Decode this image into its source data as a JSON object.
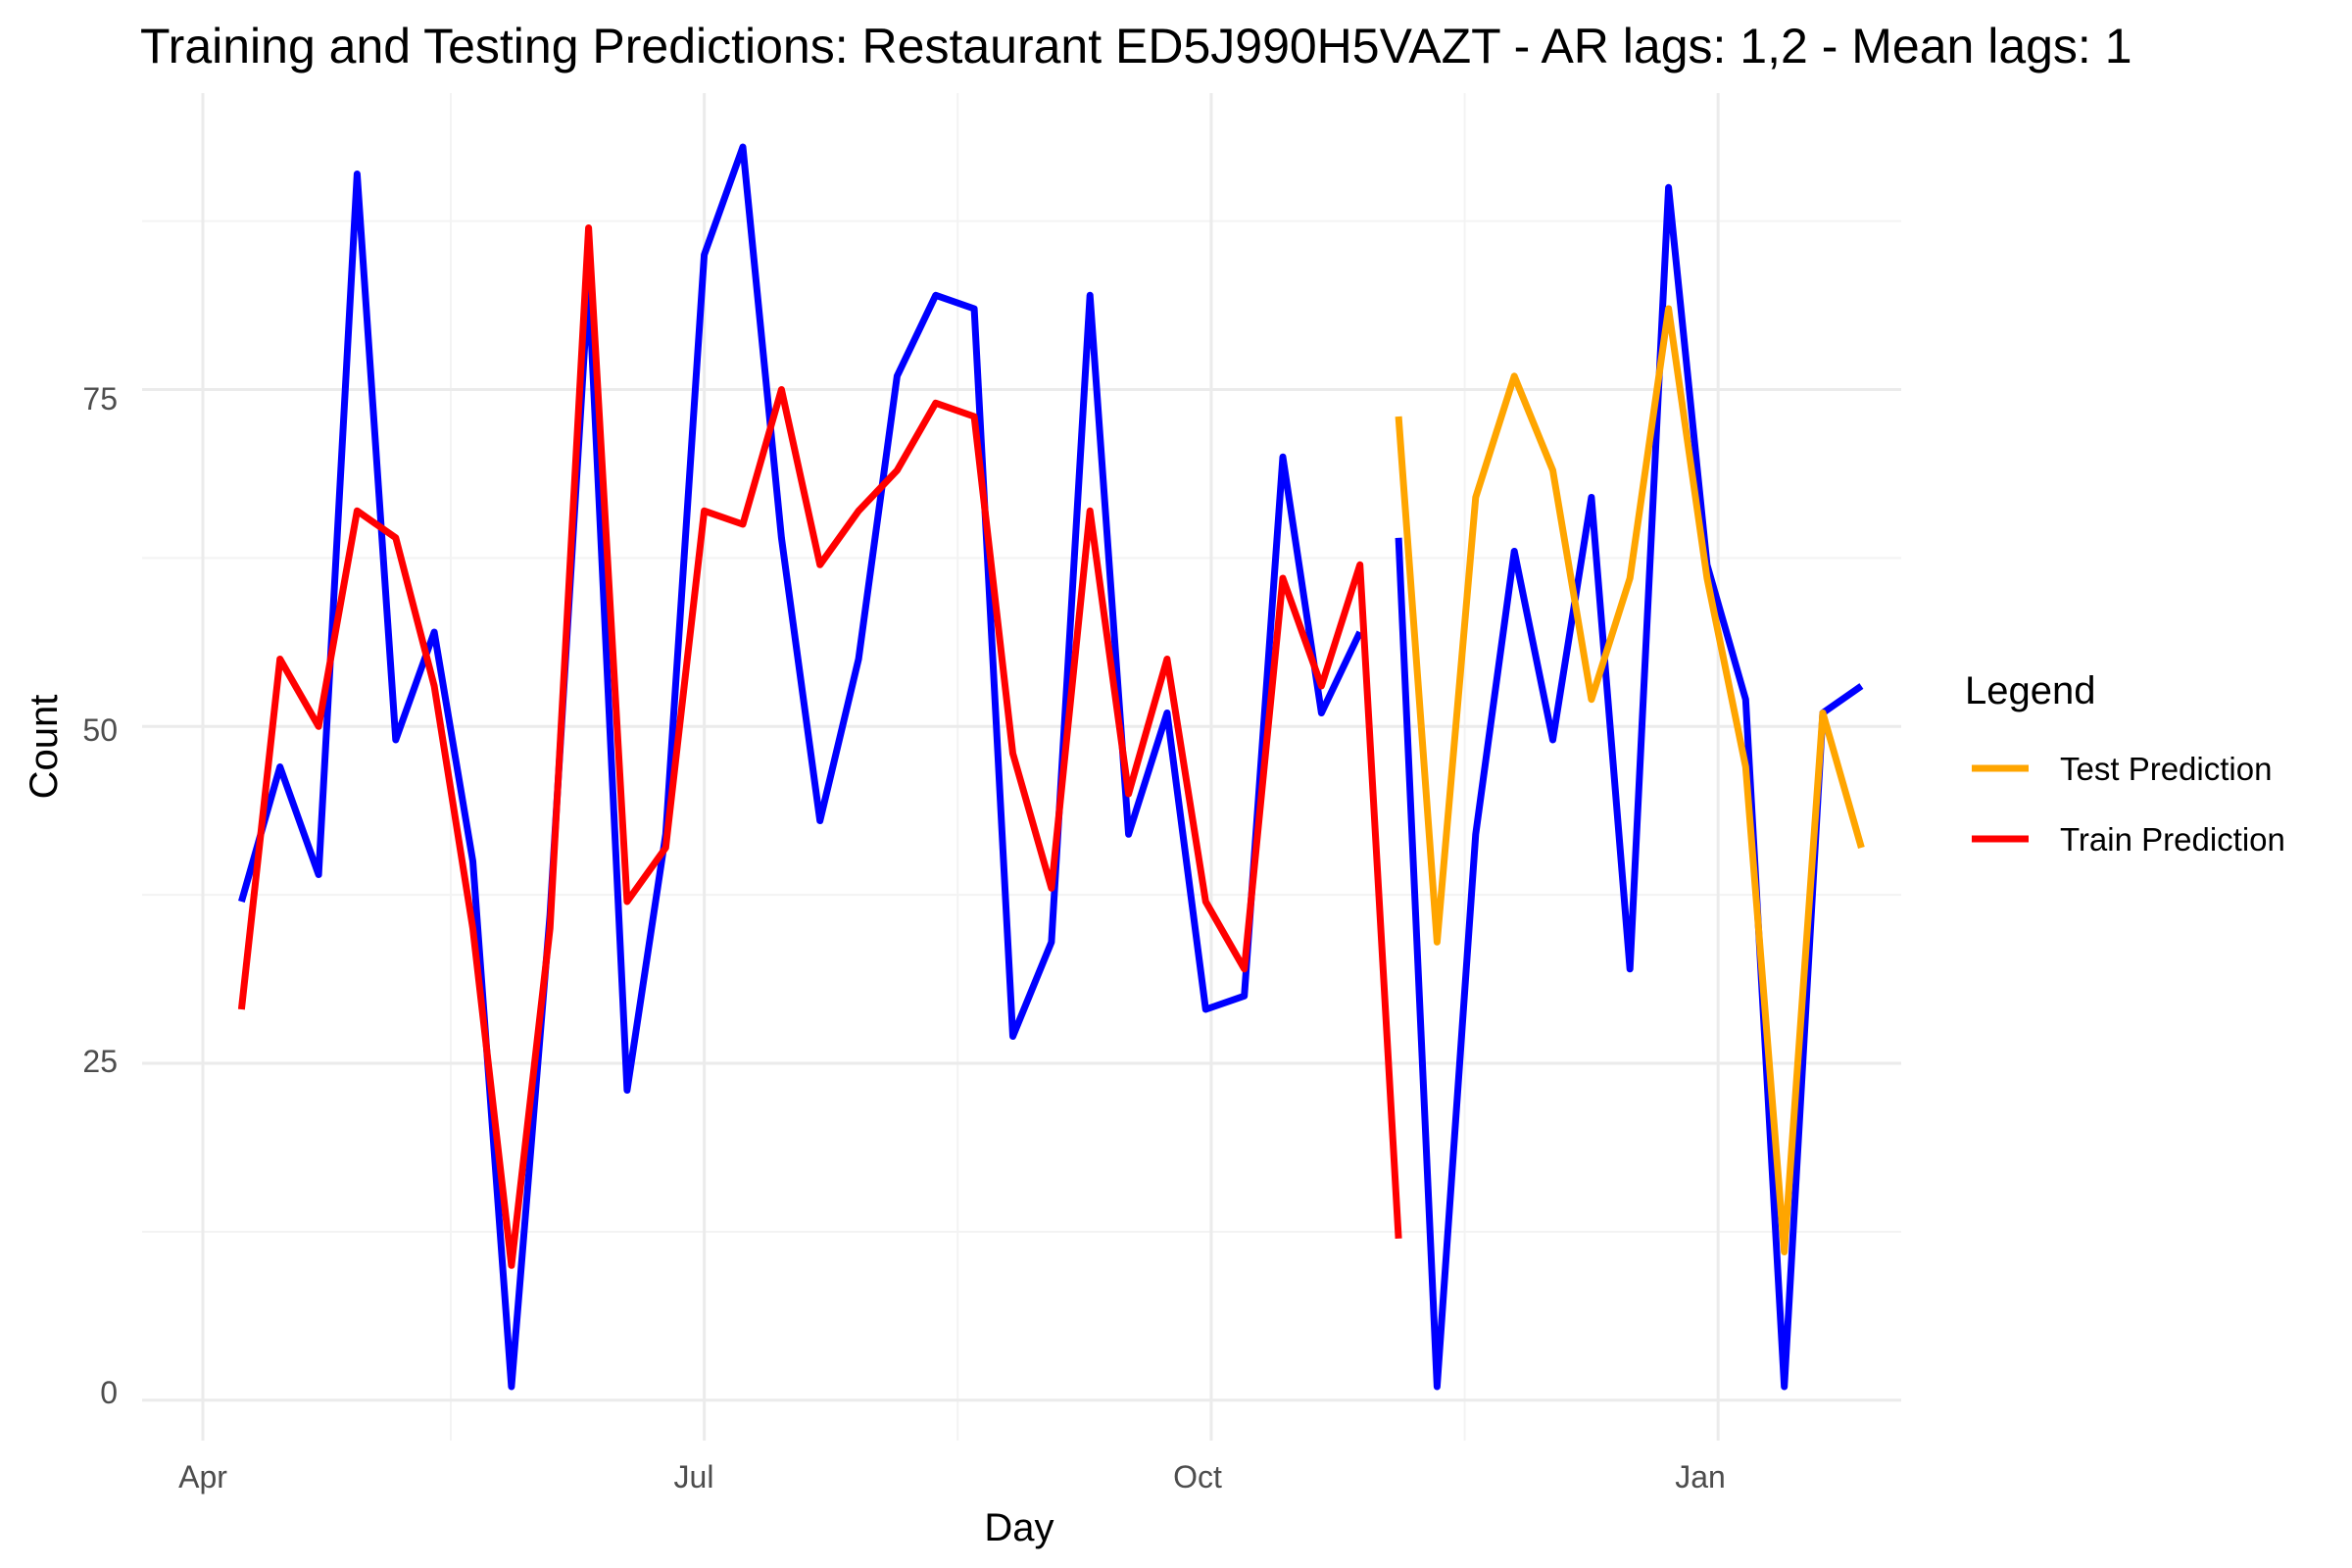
{
  "chart_data": {
    "type": "line",
    "title": "Training and Testing Predictions: Restaurant ED5J990H5VAZT - AR lags: 1,2 - Mean lags: 1",
    "xlabel": "Day",
    "ylabel": "Count",
    "x_ticks": [
      "Apr",
      "Jul",
      "Oct",
      "Jan"
    ],
    "y_ticks": [
      "0",
      "25",
      "50",
      "75"
    ],
    "ylim": [
      -3,
      97
    ],
    "grid": true,
    "legend": {
      "title": "Legend",
      "position": "right",
      "entries": [
        {
          "label": "Test Prediction",
          "color": "#FFA500"
        },
        {
          "label": "Train Prediction",
          "color": "#FF0000"
        }
      ]
    },
    "x": [
      "2018-04-08",
      "2018-04-15",
      "2018-04-22",
      "2018-04-29",
      "2018-05-06",
      "2018-05-13",
      "2018-05-20",
      "2018-05-27",
      "2018-06-03",
      "2018-06-10",
      "2018-06-17",
      "2018-06-24",
      "2018-07-01",
      "2018-07-08",
      "2018-07-15",
      "2018-07-22",
      "2018-07-29",
      "2018-08-05",
      "2018-08-12",
      "2018-08-19",
      "2018-08-26",
      "2018-09-02",
      "2018-09-09",
      "2018-09-16",
      "2018-09-23",
      "2018-09-30",
      "2018-10-07",
      "2018-10-14",
      "2018-10-21",
      "2018-10-28",
      "2018-11-04",
      "2018-11-11",
      "2018-11-18",
      "2018-11-25",
      "2018-12-02",
      "2018-12-09",
      "2018-12-16",
      "2018-12-23",
      "2018-12-30",
      "2019-01-06",
      "2019-01-13",
      "2019-01-20",
      "2019-01-27"
    ],
    "series": [
      {
        "color": "#0000FF",
        "values": [
          37,
          47,
          39,
          91,
          49,
          57,
          40,
          1,
          36,
          83,
          23,
          42,
          85,
          93,
          64,
          43,
          55,
          76,
          82,
          81,
          27,
          34,
          82,
          42,
          51,
          29,
          30,
          70,
          51,
          57,
          64,
          1,
          42,
          63,
          49,
          67,
          32,
          90,
          62,
          52,
          1,
          51,
          53
        ],
        "breaks_after": [
          29
        ]
      },
      {
        "name": "Train Prediction",
        "color": "#FF0000",
        "values": [
          29,
          55,
          50,
          66,
          64,
          53,
          35,
          10,
          35,
          87,
          37,
          41,
          66,
          65,
          75,
          62,
          66,
          69,
          74,
          73,
          48,
          38,
          66,
          45,
          55,
          37,
          32,
          61,
          53,
          62,
          12,
          null,
          null,
          null,
          null,
          null,
          null,
          null,
          null,
          null,
          null,
          null,
          null
        ]
      },
      {
        "name": "Test Prediction",
        "color": "#FFA500",
        "values": [
          null,
          null,
          null,
          null,
          null,
          null,
          null,
          null,
          null,
          null,
          null,
          null,
          null,
          null,
          null,
          null,
          null,
          null,
          null,
          null,
          null,
          null,
          null,
          null,
          null,
          null,
          null,
          null,
          null,
          null,
          73,
          34,
          67,
          76,
          69,
          52,
          61,
          81,
          61,
          47,
          11,
          51,
          41
        ]
      }
    ]
  }
}
